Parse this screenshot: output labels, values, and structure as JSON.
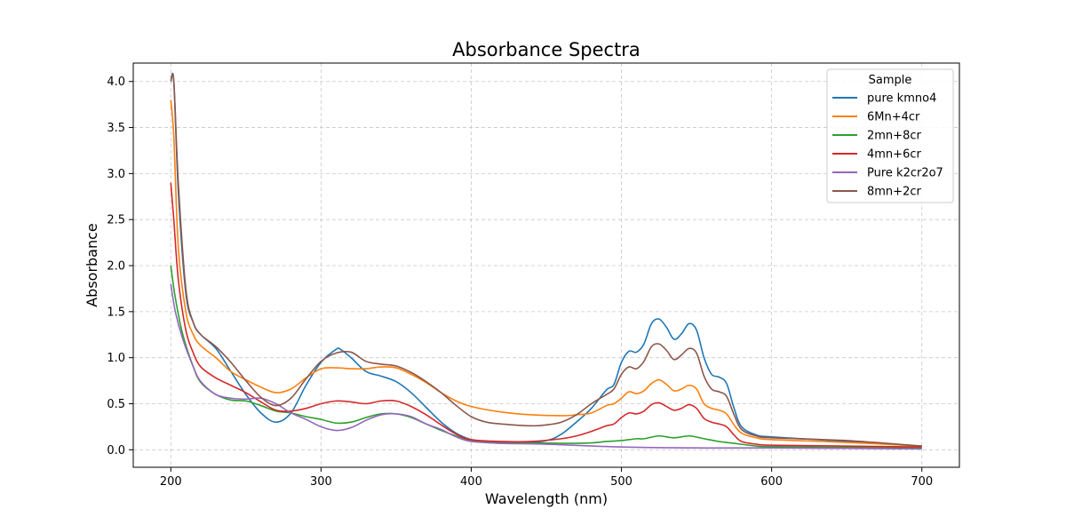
{
  "chart_data": {
    "type": "line",
    "title": "Absorbance Spectra",
    "xlabel": "Wavelength (nm)",
    "ylabel": "Absorbance",
    "xlim": [
      175,
      725
    ],
    "ylim": [
      -0.19,
      4.2
    ],
    "xticks": [
      200,
      300,
      400,
      500,
      600,
      700
    ],
    "xtick_labels": [
      "200",
      "300",
      "400",
      "500",
      "600",
      "700"
    ],
    "yticks": [
      0.0,
      0.5,
      1.0,
      1.5,
      2.0,
      2.5,
      3.0,
      3.5,
      4.0
    ],
    "ytick_labels": [
      "0.0",
      "0.5",
      "1.0",
      "1.5",
      "2.0",
      "2.5",
      "3.0",
      "3.5",
      "4.0"
    ],
    "grid": true,
    "legend": {
      "title": "Sample",
      "position": "top-right"
    },
    "series": [
      {
        "name": "pure kmno4",
        "color": "#1f77b4",
        "points": [
          [
            200,
            4.0
          ],
          [
            202,
            4.0
          ],
          [
            205,
            2.8
          ],
          [
            210,
            1.7
          ],
          [
            215,
            1.38
          ],
          [
            220,
            1.25
          ],
          [
            230,
            1.1
          ],
          [
            240,
            0.85
          ],
          [
            250,
            0.6
          ],
          [
            260,
            0.4
          ],
          [
            270,
            0.3
          ],
          [
            280,
            0.4
          ],
          [
            290,
            0.7
          ],
          [
            300,
            0.95
          ],
          [
            310,
            1.09
          ],
          [
            313,
            1.09
          ],
          [
            320,
            1.0
          ],
          [
            330,
            0.85
          ],
          [
            340,
            0.8
          ],
          [
            350,
            0.74
          ],
          [
            360,
            0.62
          ],
          [
            370,
            0.46
          ],
          [
            380,
            0.3
          ],
          [
            390,
            0.18
          ],
          [
            400,
            0.11
          ],
          [
            410,
            0.08
          ],
          [
            430,
            0.07
          ],
          [
            450,
            0.1
          ],
          [
            460,
            0.17
          ],
          [
            470,
            0.3
          ],
          [
            480,
            0.45
          ],
          [
            490,
            0.65
          ],
          [
            495,
            0.71
          ],
          [
            500,
            0.95
          ],
          [
            505,
            1.07
          ],
          [
            510,
            1.06
          ],
          [
            515,
            1.15
          ],
          [
            520,
            1.37
          ],
          [
            525,
            1.42
          ],
          [
            530,
            1.33
          ],
          [
            535,
            1.2
          ],
          [
            540,
            1.26
          ],
          [
            545,
            1.37
          ],
          [
            550,
            1.3
          ],
          [
            555,
            1.0
          ],
          [
            560,
            0.82
          ],
          [
            565,
            0.79
          ],
          [
            570,
            0.72
          ],
          [
            575,
            0.45
          ],
          [
            580,
            0.25
          ],
          [
            590,
            0.16
          ],
          [
            600,
            0.14
          ],
          [
            650,
            0.09
          ],
          [
            700,
            0.04
          ]
        ]
      },
      {
        "name": "6Mn+4cr",
        "color": "#ff7f0e",
        "points": [
          [
            200,
            3.8
          ],
          [
            202,
            3.4
          ],
          [
            205,
            2.2
          ],
          [
            210,
            1.5
          ],
          [
            215,
            1.25
          ],
          [
            220,
            1.13
          ],
          [
            230,
            1.0
          ],
          [
            240,
            0.85
          ],
          [
            250,
            0.76
          ],
          [
            260,
            0.68
          ],
          [
            270,
            0.62
          ],
          [
            280,
            0.66
          ],
          [
            290,
            0.78
          ],
          [
            300,
            0.88
          ],
          [
            310,
            0.89
          ],
          [
            320,
            0.88
          ],
          [
            330,
            0.88
          ],
          [
            340,
            0.9
          ],
          [
            350,
            0.89
          ],
          [
            360,
            0.82
          ],
          [
            370,
            0.73
          ],
          [
            380,
            0.62
          ],
          [
            390,
            0.53
          ],
          [
            400,
            0.47
          ],
          [
            420,
            0.41
          ],
          [
            440,
            0.38
          ],
          [
            460,
            0.37
          ],
          [
            470,
            0.38
          ],
          [
            480,
            0.4
          ],
          [
            490,
            0.48
          ],
          [
            495,
            0.5
          ],
          [
            500,
            0.56
          ],
          [
            505,
            0.63
          ],
          [
            510,
            0.61
          ],
          [
            515,
            0.64
          ],
          [
            520,
            0.72
          ],
          [
            525,
            0.76
          ],
          [
            530,
            0.71
          ],
          [
            535,
            0.64
          ],
          [
            540,
            0.66
          ],
          [
            545,
            0.7
          ],
          [
            550,
            0.66
          ],
          [
            555,
            0.5
          ],
          [
            560,
            0.45
          ],
          [
            565,
            0.43
          ],
          [
            570,
            0.39
          ],
          [
            575,
            0.27
          ],
          [
            580,
            0.18
          ],
          [
            590,
            0.13
          ],
          [
            600,
            0.11
          ],
          [
            650,
            0.08
          ],
          [
            700,
            0.04
          ]
        ]
      },
      {
        "name": "2mn+8cr",
        "color": "#2ca02c",
        "points": [
          [
            200,
            2.0
          ],
          [
            203,
            1.65
          ],
          [
            208,
            1.25
          ],
          [
            215,
            0.9
          ],
          [
            220,
            0.73
          ],
          [
            230,
            0.6
          ],
          [
            240,
            0.54
          ],
          [
            250,
            0.53
          ],
          [
            260,
            0.48
          ],
          [
            270,
            0.42
          ],
          [
            280,
            0.4
          ],
          [
            290,
            0.36
          ],
          [
            300,
            0.33
          ],
          [
            310,
            0.29
          ],
          [
            320,
            0.3
          ],
          [
            330,
            0.35
          ],
          [
            340,
            0.39
          ],
          [
            350,
            0.39
          ],
          [
            360,
            0.35
          ],
          [
            370,
            0.28
          ],
          [
            380,
            0.21
          ],
          [
            390,
            0.15
          ],
          [
            400,
            0.1
          ],
          [
            420,
            0.08
          ],
          [
            440,
            0.075
          ],
          [
            460,
            0.07
          ],
          [
            480,
            0.075
          ],
          [
            490,
            0.09
          ],
          [
            500,
            0.1
          ],
          [
            510,
            0.12
          ],
          [
            515,
            0.12
          ],
          [
            525,
            0.15
          ],
          [
            535,
            0.13
          ],
          [
            545,
            0.15
          ],
          [
            555,
            0.12
          ],
          [
            565,
            0.09
          ],
          [
            575,
            0.07
          ],
          [
            590,
            0.04
          ],
          [
            600,
            0.035
          ],
          [
            650,
            0.025
          ],
          [
            700,
            0.02
          ]
        ]
      },
      {
        "name": "4mn+6cr",
        "color": "#d62728",
        "points": [
          [
            200,
            2.9
          ],
          [
            202,
            2.5
          ],
          [
            205,
            1.85
          ],
          [
            210,
            1.3
          ],
          [
            215,
            1.05
          ],
          [
            220,
            0.9
          ],
          [
            230,
            0.78
          ],
          [
            240,
            0.7
          ],
          [
            250,
            0.62
          ],
          [
            260,
            0.52
          ],
          [
            270,
            0.43
          ],
          [
            280,
            0.42
          ],
          [
            290,
            0.45
          ],
          [
            300,
            0.5
          ],
          [
            310,
            0.53
          ],
          [
            320,
            0.52
          ],
          [
            330,
            0.5
          ],
          [
            340,
            0.53
          ],
          [
            350,
            0.53
          ],
          [
            360,
            0.47
          ],
          [
            370,
            0.38
          ],
          [
            380,
            0.27
          ],
          [
            390,
            0.17
          ],
          [
            400,
            0.11
          ],
          [
            420,
            0.09
          ],
          [
            440,
            0.09
          ],
          [
            460,
            0.12
          ],
          [
            470,
            0.15
          ],
          [
            480,
            0.2
          ],
          [
            490,
            0.26
          ],
          [
            495,
            0.28
          ],
          [
            500,
            0.35
          ],
          [
            505,
            0.4
          ],
          [
            510,
            0.39
          ],
          [
            515,
            0.42
          ],
          [
            520,
            0.49
          ],
          [
            525,
            0.51
          ],
          [
            530,
            0.47
          ],
          [
            535,
            0.43
          ],
          [
            540,
            0.45
          ],
          [
            545,
            0.49
          ],
          [
            550,
            0.45
          ],
          [
            555,
            0.34
          ],
          [
            560,
            0.3
          ],
          [
            565,
            0.28
          ],
          [
            570,
            0.25
          ],
          [
            575,
            0.16
          ],
          [
            580,
            0.09
          ],
          [
            590,
            0.06
          ],
          [
            600,
            0.05
          ],
          [
            650,
            0.04
          ],
          [
            700,
            0.03
          ]
        ]
      },
      {
        "name": "Pure k2cr2o7",
        "color": "#9467bd",
        "points": [
          [
            200,
            1.8
          ],
          [
            203,
            1.5
          ],
          [
            208,
            1.2
          ],
          [
            215,
            0.9
          ],
          [
            220,
            0.74
          ],
          [
            230,
            0.6
          ],
          [
            240,
            0.56
          ],
          [
            250,
            0.55
          ],
          [
            260,
            0.56
          ],
          [
            270,
            0.5
          ],
          [
            280,
            0.4
          ],
          [
            290,
            0.33
          ],
          [
            300,
            0.25
          ],
          [
            310,
            0.21
          ],
          [
            320,
            0.24
          ],
          [
            330,
            0.32
          ],
          [
            340,
            0.38
          ],
          [
            350,
            0.39
          ],
          [
            360,
            0.36
          ],
          [
            370,
            0.28
          ],
          [
            380,
            0.22
          ],
          [
            390,
            0.14
          ],
          [
            400,
            0.09
          ],
          [
            420,
            0.07
          ],
          [
            450,
            0.06
          ],
          [
            500,
            0.03
          ],
          [
            550,
            0.02
          ],
          [
            600,
            0.02
          ],
          [
            650,
            0.015
          ],
          [
            700,
            0.01
          ]
        ]
      },
      {
        "name": "8mn+2cr",
        "color": "#8c564b",
        "points": [
          [
            200,
            4.0
          ],
          [
            202,
            4.0
          ],
          [
            205,
            2.9
          ],
          [
            210,
            1.75
          ],
          [
            215,
            1.38
          ],
          [
            220,
            1.25
          ],
          [
            230,
            1.12
          ],
          [
            240,
            0.95
          ],
          [
            250,
            0.75
          ],
          [
            260,
            0.57
          ],
          [
            270,
            0.48
          ],
          [
            280,
            0.56
          ],
          [
            290,
            0.77
          ],
          [
            300,
            0.96
          ],
          [
            310,
            1.05
          ],
          [
            320,
            1.06
          ],
          [
            330,
            0.96
          ],
          [
            340,
            0.93
          ],
          [
            350,
            0.91
          ],
          [
            360,
            0.84
          ],
          [
            370,
            0.74
          ],
          [
            380,
            0.62
          ],
          [
            390,
            0.48
          ],
          [
            400,
            0.36
          ],
          [
            410,
            0.3
          ],
          [
            420,
            0.28
          ],
          [
            440,
            0.26
          ],
          [
            450,
            0.27
          ],
          [
            460,
            0.3
          ],
          [
            470,
            0.38
          ],
          [
            480,
            0.5
          ],
          [
            490,
            0.6
          ],
          [
            495,
            0.66
          ],
          [
            500,
            0.82
          ],
          [
            505,
            0.9
          ],
          [
            510,
            0.88
          ],
          [
            515,
            0.96
          ],
          [
            520,
            1.12
          ],
          [
            525,
            1.15
          ],
          [
            530,
            1.08
          ],
          [
            535,
            0.98
          ],
          [
            540,
            1.03
          ],
          [
            545,
            1.1
          ],
          [
            550,
            1.05
          ],
          [
            555,
            0.8
          ],
          [
            560,
            0.66
          ],
          [
            565,
            0.63
          ],
          [
            570,
            0.58
          ],
          [
            575,
            0.38
          ],
          [
            580,
            0.22
          ],
          [
            590,
            0.15
          ],
          [
            600,
            0.13
          ],
          [
            650,
            0.1
          ],
          [
            700,
            0.04
          ]
        ]
      }
    ]
  }
}
